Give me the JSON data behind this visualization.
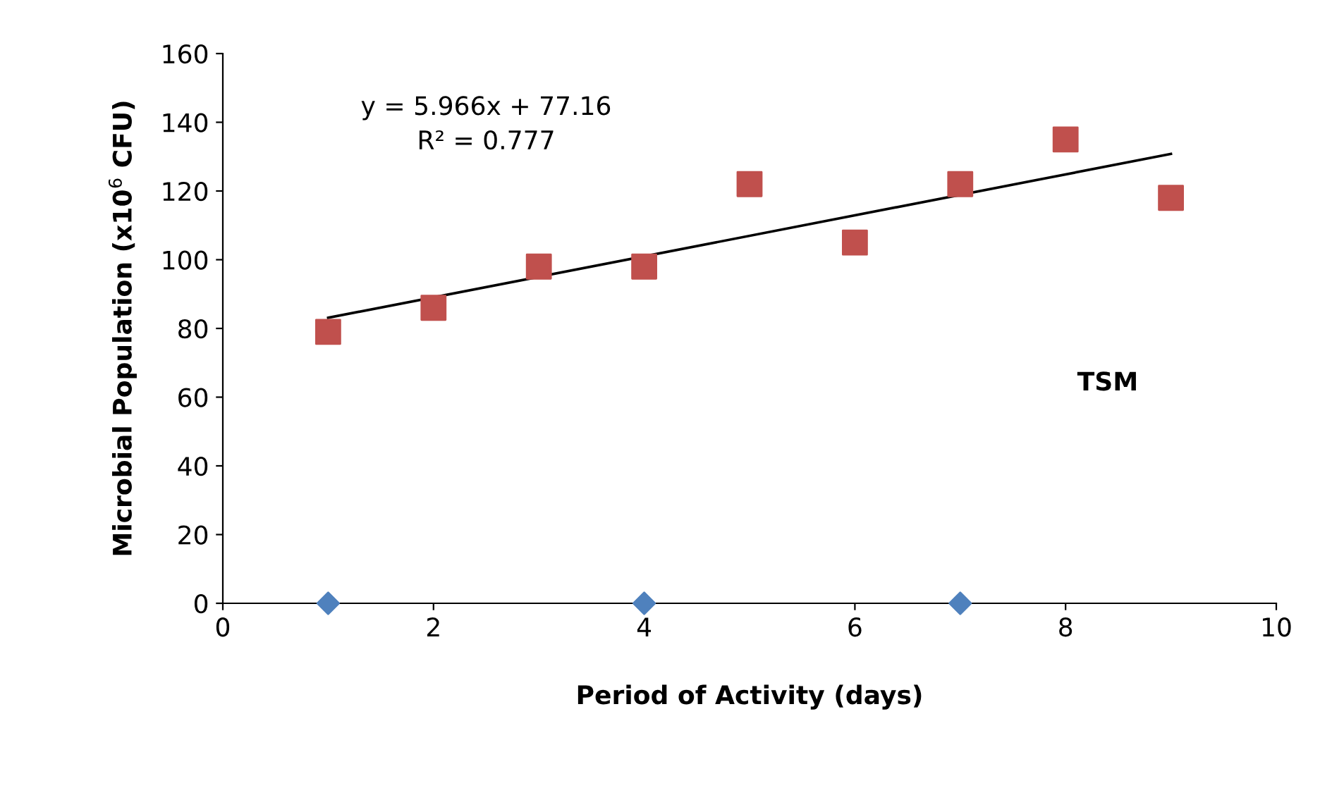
{
  "chart_data": {
    "type": "scatter",
    "xlabel": "Period of Activity (days)",
    "ylabel": "Microbial Population (x10$^{6}$ CFU)",
    "xlim": [
      0,
      10
    ],
    "xticks": [
      0,
      2,
      4,
      6,
      8,
      10
    ],
    "ylim": [
      0,
      160
    ],
    "yticks": [
      0,
      20,
      40,
      60,
      80,
      100,
      120,
      140,
      160
    ],
    "grid": false,
    "series": [
      {
        "marker": "diamond",
        "color": "#4f81bd",
        "x": [
          1,
          4,
          7
        ],
        "values": [
          0,
          0,
          0
        ]
      },
      {
        "marker": "square",
        "color": "#c0504d",
        "x": [
          1,
          2,
          3,
          4,
          5,
          6,
          7,
          8,
          9
        ],
        "values": [
          79,
          86,
          98,
          98,
          122,
          105,
          122,
          135,
          118
        ]
      },
      {
        "type": "line",
        "marker": "none",
        "color": "#000000",
        "x": [
          1,
          9
        ],
        "values": [
          83.1,
          130.8
        ]
      }
    ],
    "annotations": [
      "y = 5.966x + 77.16\nR² = 0.777",
      "TSM"
    ]
  }
}
